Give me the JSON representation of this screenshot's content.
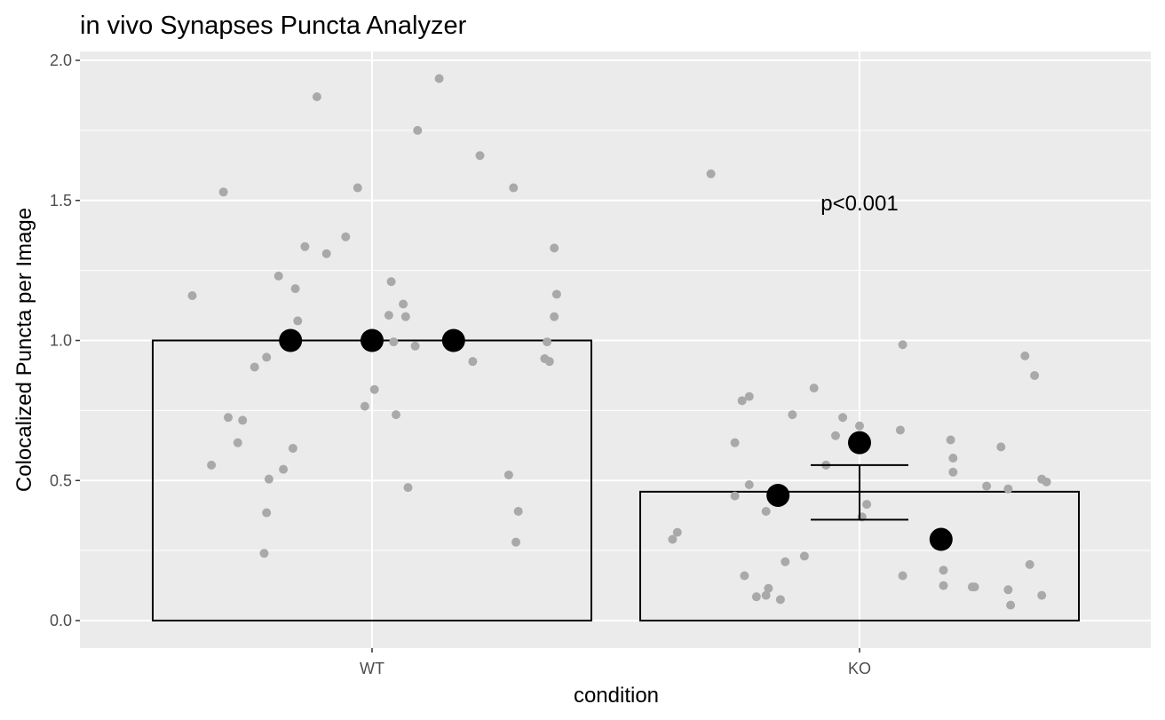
{
  "chart_data": {
    "type": "bar",
    "title": "in vivo Synapses Puncta Analyzer",
    "xlabel": "condition",
    "ylabel": "Colocalized Puncta per Image",
    "categories": [
      "WT",
      "KO"
    ],
    "values": [
      1.0,
      0.46
    ],
    "error_bars": [
      {
        "category": "KO",
        "low": 0.36,
        "high": 0.555
      }
    ],
    "ylim": [
      -0.1,
      2.03
    ],
    "yticks": [
      0.0,
      0.5,
      1.0,
      1.5,
      2.0
    ],
    "ytick_labels": [
      "0.0",
      "0.5",
      "1.0",
      "1.5",
      "2.0"
    ],
    "grid": true,
    "annotations": [
      {
        "text": "p<0.001",
        "x": "KO",
        "y": 1.49
      }
    ],
    "replicate_means": [
      {
        "category": "WT",
        "points": [
          [
            -0.17,
            1.0
          ],
          [
            0.0,
            1.0
          ],
          [
            0.17,
            1.0
          ]
        ]
      },
      {
        "category": "KO",
        "points": [
          [
            -0.17,
            0.447
          ],
          [
            0.0,
            0.635
          ],
          [
            0.17,
            0.29
          ]
        ]
      }
    ],
    "raw_points": [
      {
        "category": "WT",
        "points": [
          [
            -0.375,
            1.16
          ],
          [
            -0.31,
            1.53
          ],
          [
            -0.335,
            0.555
          ],
          [
            -0.3,
            0.725
          ],
          [
            -0.28,
            0.635
          ],
          [
            -0.27,
            0.715
          ],
          [
            -0.245,
            0.905
          ],
          [
            -0.22,
            0.94
          ],
          [
            -0.225,
            0.24
          ],
          [
            -0.22,
            0.385
          ],
          [
            -0.215,
            0.505
          ],
          [
            -0.195,
            1.23
          ],
          [
            -0.185,
            0.54
          ],
          [
            -0.165,
            0.615
          ],
          [
            -0.16,
            1.185
          ],
          [
            -0.155,
            1.07
          ],
          [
            -0.14,
            1.335
          ],
          [
            -0.115,
            1.87
          ],
          [
            -0.095,
            1.31
          ],
          [
            -0.055,
            1.37
          ],
          [
            -0.03,
            1.545
          ],
          [
            -0.015,
            0.765
          ],
          [
            0.005,
            0.825
          ],
          [
            0.035,
            1.09
          ],
          [
            0.04,
            1.21
          ],
          [
            0.045,
            0.995
          ],
          [
            0.05,
            0.735
          ],
          [
            0.065,
            1.13
          ],
          [
            0.07,
            1.085
          ],
          [
            0.075,
            0.475
          ],
          [
            0.09,
            0.98
          ],
          [
            0.095,
            1.75
          ],
          [
            0.14,
            1.935
          ],
          [
            0.21,
            0.925
          ],
          [
            0.225,
            1.66
          ],
          [
            0.285,
            0.52
          ],
          [
            0.295,
            1.545
          ],
          [
            0.3,
            0.28
          ],
          [
            0.305,
            0.39
          ],
          [
            0.36,
            0.935
          ],
          [
            0.365,
            0.995
          ],
          [
            0.37,
            0.925
          ],
          [
            0.38,
            1.33
          ],
          [
            0.38,
            1.085
          ],
          [
            0.385,
            1.165
          ]
        ]
      },
      {
        "category": "KO",
        "points": [
          [
            -0.39,
            0.29
          ],
          [
            -0.38,
            0.315
          ],
          [
            -0.31,
            1.595
          ],
          [
            -0.26,
            0.635
          ],
          [
            -0.26,
            0.445
          ],
          [
            -0.245,
            0.785
          ],
          [
            -0.24,
            0.16
          ],
          [
            -0.23,
            0.8
          ],
          [
            -0.23,
            0.485
          ],
          [
            -0.215,
            0.085
          ],
          [
            -0.195,
            0.09
          ],
          [
            -0.195,
            0.39
          ],
          [
            -0.19,
            0.115
          ],
          [
            -0.165,
            0.075
          ],
          [
            -0.155,
            0.21
          ],
          [
            -0.14,
            0.735
          ],
          [
            -0.115,
            0.23
          ],
          [
            -0.095,
            0.83
          ],
          [
            -0.07,
            0.555
          ],
          [
            -0.05,
            0.66
          ],
          [
            -0.035,
            0.725
          ],
          [
            0.0,
            0.695
          ],
          [
            0.005,
            0.37
          ],
          [
            0.015,
            0.415
          ],
          [
            0.085,
            0.68
          ],
          [
            0.09,
            0.985
          ],
          [
            0.09,
            0.16
          ],
          [
            0.175,
            0.18
          ],
          [
            0.175,
            0.125
          ],
          [
            0.19,
            0.645
          ],
          [
            0.195,
            0.58
          ],
          [
            0.195,
            0.53
          ],
          [
            0.235,
            0.12
          ],
          [
            0.24,
            0.12
          ],
          [
            0.265,
            0.48
          ],
          [
            0.295,
            0.62
          ],
          [
            0.31,
            0.11
          ],
          [
            0.31,
            0.47
          ],
          [
            0.315,
            0.055
          ],
          [
            0.345,
            0.945
          ],
          [
            0.355,
            0.2
          ],
          [
            0.365,
            0.875
          ],
          [
            0.38,
            0.505
          ],
          [
            0.38,
            0.09
          ],
          [
            0.39,
            0.495
          ]
        ]
      }
    ],
    "colors": {
      "panel_background": "#ebebeb",
      "gridline": "#ffffff",
      "raw_point": "#a9a9a9",
      "replicate_mean": "#000000",
      "bar_outline": "#000000",
      "tick_text": "#4d4d4d"
    }
  }
}
